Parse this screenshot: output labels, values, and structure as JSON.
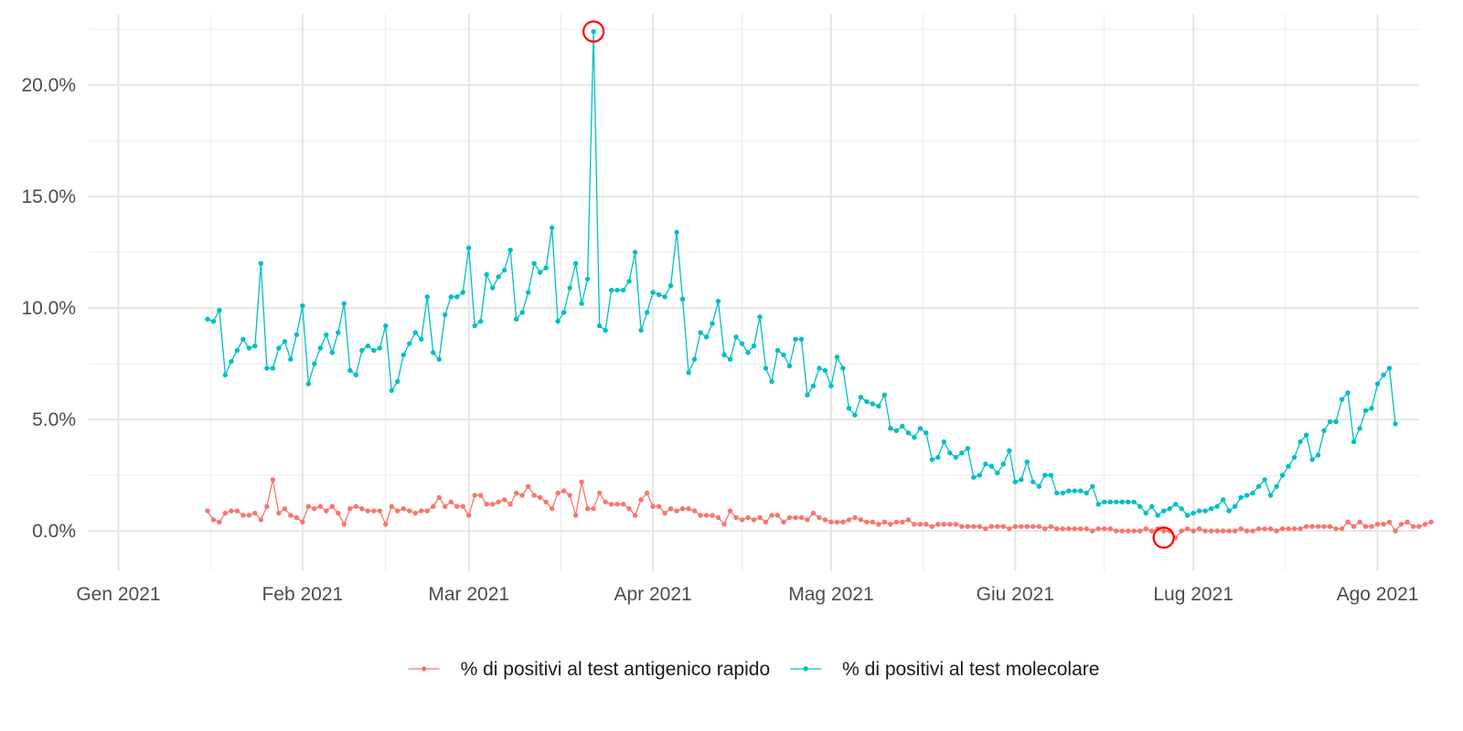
{
  "chart_data": {
    "type": "line",
    "title": "",
    "xlabel": "",
    "ylabel": "",
    "x_axis": {
      "type": "date",
      "range": [
        "2020-12-27",
        "2021-08-08"
      ],
      "ticks": [
        {
          "date": "2021-01-01",
          "label": "Gen 2021"
        },
        {
          "date": "2021-02-01",
          "label": "Feb 2021"
        },
        {
          "date": "2021-03-01",
          "label": "Mar 2021"
        },
        {
          "date": "2021-04-01",
          "label": "Apr 2021"
        },
        {
          "date": "2021-05-01",
          "label": "Mag 2021"
        },
        {
          "date": "2021-06-01",
          "label": "Giu 2021"
        },
        {
          "date": "2021-07-01",
          "label": "Lug 2021"
        },
        {
          "date": "2021-08-01",
          "label": "Ago 2021"
        }
      ]
    },
    "y_axis": {
      "range": [
        -1.8,
        23.2
      ],
      "ticks": [
        0,
        5,
        10,
        15,
        20
      ],
      "tick_labels": [
        "0.0%",
        "5.0%",
        "10.0%",
        "15.0%",
        "20.0%"
      ]
    },
    "grid": true,
    "legend_position": "bottom",
    "x_start": "2021-01-16",
    "series": [
      {
        "name": "% di positivi al test antigenico rapido",
        "color": "#f8766d",
        "values": [
          0.9,
          0.5,
          0.4,
          0.8,
          0.9,
          0.9,
          0.7,
          0.7,
          0.8,
          0.5,
          1.1,
          2.3,
          0.8,
          1.0,
          0.7,
          0.6,
          0.4,
          1.1,
          1.0,
          1.1,
          0.9,
          1.1,
          0.8,
          0.3,
          1.0,
          1.1,
          1.0,
          0.9,
          0.9,
          0.9,
          0.3,
          1.1,
          0.9,
          1.0,
          0.9,
          0.8,
          0.9,
          0.9,
          1.1,
          1.5,
          1.1,
          1.3,
          1.1,
          1.1,
          0.7,
          1.6,
          1.6,
          1.2,
          1.2,
          1.3,
          1.4,
          1.2,
          1.7,
          1.6,
          2.0,
          1.6,
          1.5,
          1.3,
          1.0,
          1.7,
          1.8,
          1.6,
          0.7,
          2.2,
          1.0,
          1.0,
          1.7,
          1.3,
          1.2,
          1.2,
          1.2,
          1.0,
          0.7,
          1.4,
          1.7,
          1.1,
          1.1,
          0.8,
          1.0,
          0.9,
          1.0,
          1.0,
          0.9,
          0.7,
          0.7,
          0.7,
          0.6,
          0.3,
          0.9,
          0.6,
          0.5,
          0.6,
          0.5,
          0.6,
          0.4,
          0.7,
          0.7,
          0.4,
          0.6,
          0.6,
          0.6,
          0.5,
          0.8,
          0.6,
          0.5,
          0.4,
          0.4,
          0.4,
          0.5,
          0.6,
          0.5,
          0.4,
          0.4,
          0.3,
          0.4,
          0.3,
          0.4,
          0.4,
          0.5,
          0.3,
          0.3,
          0.3,
          0.2,
          0.3,
          0.3,
          0.3,
          0.3,
          0.2,
          0.2,
          0.2,
          0.2,
          0.1,
          0.2,
          0.2,
          0.2,
          0.1,
          0.2,
          0.2,
          0.2,
          0.2,
          0.2,
          0.1,
          0.2,
          0.1,
          0.1,
          0.1,
          0.1,
          0.1,
          0.1,
          0.0,
          0.1,
          0.1,
          0.1,
          0.0,
          0.0,
          0.0,
          0.0,
          0.0,
          0.1,
          0.0,
          0.1,
          0.0,
          0.0,
          -0.3,
          0.0,
          0.1,
          0.0,
          0.1,
          0.0,
          0.0,
          0.0,
          0.0,
          0.0,
          0.0,
          0.1,
          0.0,
          0.0,
          0.1,
          0.1,
          0.1,
          0.0,
          0.1,
          0.1,
          0.1,
          0.1,
          0.2,
          0.2,
          0.2,
          0.2,
          0.2,
          0.1,
          0.1,
          0.4,
          0.2,
          0.4,
          0.2,
          0.2,
          0.3,
          0.3,
          0.4,
          0.0,
          0.3,
          0.4,
          0.2,
          0.2,
          0.3,
          0.4
        ]
      },
      {
        "name": "% di positivi al test molecolare",
        "color": "#00bfc4",
        "values": [
          9.5,
          9.4,
          9.9,
          7.0,
          7.6,
          8.1,
          8.6,
          8.2,
          8.3,
          12.0,
          7.3,
          7.3,
          8.2,
          8.5,
          7.7,
          8.8,
          10.1,
          6.6,
          7.5,
          8.2,
          8.8,
          8.0,
          8.9,
          10.2,
          7.2,
          7.0,
          8.1,
          8.3,
          8.1,
          8.2,
          9.2,
          6.3,
          6.7,
          7.9,
          8.4,
          8.9,
          8.6,
          10.5,
          8.0,
          7.7,
          9.7,
          10.5,
          10.5,
          10.7,
          12.7,
          9.2,
          9.4,
          11.5,
          10.9,
          11.4,
          11.7,
          12.6,
          9.5,
          9.8,
          10.7,
          12.0,
          11.6,
          11.8,
          13.6,
          9.4,
          9.8,
          10.9,
          12.0,
          10.2,
          11.3,
          22.4,
          9.2,
          9.0,
          10.8,
          10.8,
          10.8,
          11.2,
          12.5,
          9.0,
          9.8,
          10.7,
          10.6,
          10.5,
          11.0,
          13.4,
          10.4,
          7.1,
          7.7,
          8.9,
          8.7,
          9.3,
          10.3,
          7.9,
          7.7,
          8.7,
          8.4,
          8.0,
          8.3,
          9.6,
          7.3,
          6.7,
          8.1,
          7.9,
          7.4,
          8.6,
          8.6,
          6.1,
          6.5,
          7.3,
          7.2,
          6.5,
          7.8,
          7.3,
          5.5,
          5.2,
          6.0,
          5.8,
          5.7,
          5.6,
          6.1,
          4.6,
          4.5,
          4.7,
          4.4,
          4.2,
          4.6,
          4.4,
          3.2,
          3.3,
          4.0,
          3.5,
          3.3,
          3.5,
          3.7,
          2.4,
          2.5,
          3.0,
          2.9,
          2.6,
          3.0,
          3.6,
          2.2,
          2.3,
          3.1,
          2.2,
          2.0,
          2.5,
          2.5,
          1.7,
          1.7,
          1.8,
          1.8,
          1.8,
          1.7,
          2.0,
          1.2,
          1.3,
          1.3,
          1.3,
          1.3,
          1.3,
          1.3,
          1.1,
          0.8,
          1.1,
          0.7,
          0.9,
          1.0,
          1.2,
          1.0,
          0.7,
          0.8,
          0.9,
          0.9,
          1.0,
          1.1,
          1.4,
          0.9,
          1.1,
          1.5,
          1.6,
          1.7,
          2.0,
          2.3,
          1.6,
          2.0,
          2.5,
          2.9,
          3.3,
          4.0,
          4.3,
          3.2,
          3.4,
          4.5,
          4.9,
          4.9,
          5.9,
          6.2,
          4.0,
          4.6,
          5.4,
          5.5,
          6.6,
          7.0,
          7.3,
          4.8
        ]
      }
    ],
    "annotations": [
      {
        "type": "circle",
        "series": 1,
        "date": "2021-03-22",
        "value": 22.4
      },
      {
        "type": "circle",
        "series": 0,
        "date": "2021-06-26",
        "value": -0.3
      }
    ]
  }
}
